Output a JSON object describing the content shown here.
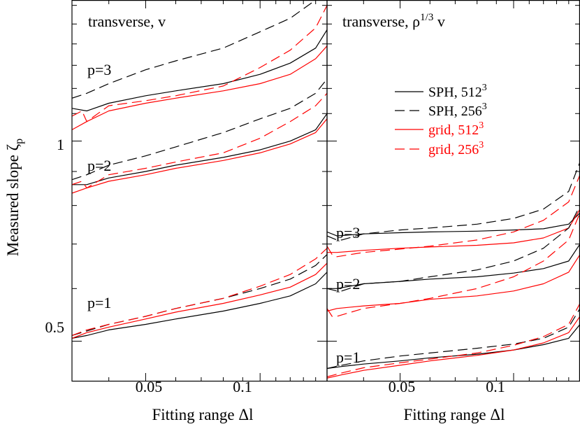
{
  "figure": {
    "ylabel": "Measured slope ζp",
    "ylabel_main": "Measured slope ζ",
    "ylabel_sub": "p",
    "xlabel": "Fitting range Δl",
    "xtick_labels": [
      "0.05",
      "0.1"
    ],
    "xticks": [
      0.05,
      0.1
    ],
    "ytick_labels": [
      "0.5",
      "1"
    ],
    "yticks": [
      0.5,
      1.0
    ]
  },
  "chart_data": [
    {
      "type": "line",
      "title": "transverse, v",
      "xlabel": "Fitting range Δl",
      "ylabel": "Measured slope ζp",
      "xscale": "log",
      "yscale": "log",
      "xlim": [
        0.032,
        0.15
      ],
      "ylim": [
        0.435,
        1.63
      ],
      "legend": [],
      "annotations": [
        {
          "text": "p=3",
          "x": 0.036,
          "y": 1.28
        },
        {
          "text": "p=2",
          "x": 0.036,
          "y": 0.905
        },
        {
          "text": "p=1",
          "x": 0.036,
          "y": 0.555
        }
      ],
      "series": [
        {
          "name": "SPH, 512³",
          "color": "#000000",
          "dash": "solid",
          "x": [
            0.032,
            0.035,
            0.04,
            0.05,
            0.06,
            0.08,
            0.1,
            0.12,
            0.14,
            0.15
          ],
          "y": [
            1.12,
            1.11,
            1.14,
            1.17,
            1.19,
            1.22,
            1.26,
            1.31,
            1.38,
            1.47
          ]
        },
        {
          "name": "SPH, 256³",
          "color": "#000000",
          "dash": "dashed",
          "x": [
            0.032,
            0.035,
            0.04,
            0.05,
            0.06,
            0.08,
            0.1,
            0.12,
            0.14,
            0.15
          ],
          "y": [
            1.16,
            1.18,
            1.22,
            1.28,
            1.32,
            1.38,
            1.46,
            1.53,
            1.63,
            1.7
          ]
        },
        {
          "name": "grid, 512³",
          "color": "#ff0000",
          "dash": "solid",
          "x": [
            0.032,
            0.035,
            0.04,
            0.05,
            0.06,
            0.08,
            0.1,
            0.12,
            0.14,
            0.15
          ],
          "y": [
            1.04,
            1.07,
            1.11,
            1.14,
            1.16,
            1.19,
            1.22,
            1.26,
            1.33,
            1.39
          ]
        },
        {
          "name": "grid, 256³",
          "color": "#ff0000",
          "dash": "dashed",
          "x": [
            0.032,
            0.034,
            0.035,
            0.04,
            0.05,
            0.06,
            0.08,
            0.1,
            0.12,
            0.14,
            0.15
          ],
          "y": [
            1.09,
            1.11,
            1.07,
            1.13,
            1.15,
            1.17,
            1.21,
            1.29,
            1.37,
            1.48,
            1.6
          ]
        },
        {
          "name": "SPH, 512³",
          "color": "#000000",
          "dash": "solid",
          "x": [
            0.032,
            0.035,
            0.04,
            0.05,
            0.06,
            0.08,
            0.1,
            0.12,
            0.14,
            0.15
          ],
          "y": [
            0.86,
            0.86,
            0.88,
            0.9,
            0.92,
            0.945,
            0.97,
            1.0,
            1.04,
            1.1
          ]
        },
        {
          "name": "SPH, 256³",
          "color": "#000000",
          "dash": "dashed",
          "x": [
            0.032,
            0.035,
            0.04,
            0.05,
            0.06,
            0.08,
            0.1,
            0.12,
            0.14,
            0.15
          ],
          "y": [
            0.875,
            0.89,
            0.92,
            0.95,
            0.98,
            1.03,
            1.08,
            1.12,
            1.18,
            1.24
          ]
        },
        {
          "name": "grid, 512³",
          "color": "#ff0000",
          "dash": "solid",
          "x": [
            0.032,
            0.035,
            0.04,
            0.05,
            0.06,
            0.08,
            0.1,
            0.12,
            0.14,
            0.15
          ],
          "y": [
            0.835,
            0.85,
            0.87,
            0.89,
            0.91,
            0.935,
            0.96,
            0.99,
            1.03,
            1.08
          ]
        },
        {
          "name": "grid, 256³",
          "color": "#ff0000",
          "dash": "dashed",
          "x": [
            0.032,
            0.034,
            0.035,
            0.04,
            0.05,
            0.06,
            0.08,
            0.1,
            0.12,
            0.14,
            0.15
          ],
          "y": [
            0.86,
            0.87,
            0.85,
            0.89,
            0.91,
            0.93,
            0.96,
            1.01,
            1.07,
            1.13,
            1.18
          ]
        },
        {
          "name": "SPH, 512³",
          "color": "#000000",
          "dash": "solid",
          "x": [
            0.032,
            0.035,
            0.04,
            0.05,
            0.06,
            0.08,
            0.1,
            0.12,
            0.14,
            0.15
          ],
          "y": [
            0.505,
            0.51,
            0.52,
            0.53,
            0.54,
            0.555,
            0.57,
            0.585,
            0.61,
            0.635
          ]
        },
        {
          "name": "SPH, 256³",
          "color": "#000000",
          "dash": "dashed",
          "x": [
            0.032,
            0.035,
            0.04,
            0.05,
            0.06,
            0.08,
            0.1,
            0.12,
            0.14,
            0.15
          ],
          "y": [
            0.51,
            0.518,
            0.53,
            0.545,
            0.56,
            0.58,
            0.6,
            0.62,
            0.65,
            0.675
          ]
        },
        {
          "name": "grid, 512³",
          "color": "#ff0000",
          "dash": "solid",
          "x": [
            0.032,
            0.035,
            0.04,
            0.05,
            0.06,
            0.08,
            0.1,
            0.12,
            0.14,
            0.15
          ],
          "y": [
            0.505,
            0.515,
            0.525,
            0.54,
            0.553,
            0.57,
            0.587,
            0.603,
            0.63,
            0.655
          ]
        },
        {
          "name": "grid, 256³",
          "color": "#ff0000",
          "dash": "dashed",
          "x": [
            0.032,
            0.035,
            0.04,
            0.05,
            0.06,
            0.08,
            0.1,
            0.12,
            0.14,
            0.15
          ],
          "y": [
            0.51,
            0.52,
            0.53,
            0.545,
            0.56,
            0.58,
            0.605,
            0.63,
            0.665,
            0.69
          ]
        }
      ]
    },
    {
      "type": "line",
      "title": "transverse, ρ1/3 v",
      "title_main": "transverse, ρ",
      "title_sup": "1/3",
      "title_end": " v",
      "xlabel": "Fitting range Δl",
      "xscale": "log",
      "yscale": "log",
      "xlim": [
        0.032,
        0.15
      ],
      "ylim": [
        0.435,
        1.63
      ],
      "legend": [
        {
          "label": "SPH, 512³",
          "label_main": "SPH, 512",
          "label_sup": "3",
          "color": "#000000",
          "dash": "solid"
        },
        {
          "label": "SPH, 256³",
          "label_main": "SPH, 256",
          "label_sup": "3",
          "color": "#000000",
          "dash": "dashed"
        },
        {
          "label": "grid, 512³",
          "label_main": "grid, 512",
          "label_sup": "3",
          "color": "#ff0000",
          "dash": "solid"
        },
        {
          "label": "grid, 256³",
          "label_main": "grid, 256",
          "label_sup": "3",
          "color": "#ff0000",
          "dash": "dashed"
        }
      ],
      "legend_position": "top-right",
      "annotations": [
        {
          "text": "p=3",
          "x": 0.034,
          "y": 0.735
        },
        {
          "text": "p=2",
          "x": 0.034,
          "y": 0.605
        },
        {
          "text": "p=1",
          "x": 0.034,
          "y": 0.457
        }
      ],
      "series": [
        {
          "name": "SPH, 512³",
          "color": "#000000",
          "dash": "solid",
          "x": [
            0.032,
            0.034,
            0.04,
            0.05,
            0.06,
            0.08,
            0.1,
            0.12,
            0.14,
            0.15
          ],
          "y": [
            0.73,
            0.72,
            0.725,
            0.728,
            0.73,
            0.732,
            0.735,
            0.738,
            0.75,
            0.78
          ]
        },
        {
          "name": "SPH, 256³",
          "color": "#000000",
          "dash": "dashed",
          "x": [
            0.032,
            0.034,
            0.035,
            0.04,
            0.05,
            0.06,
            0.08,
            0.1,
            0.12,
            0.14,
            0.15
          ],
          "y": [
            0.72,
            0.71,
            0.71,
            0.725,
            0.735,
            0.74,
            0.75,
            0.765,
            0.79,
            0.84,
            0.93
          ]
        },
        {
          "name": "grid, 512³",
          "color": "#ff0000",
          "dash": "solid",
          "x": [
            0.032,
            0.034,
            0.04,
            0.05,
            0.06,
            0.08,
            0.1,
            0.12,
            0.14,
            0.15
          ],
          "y": [
            0.68,
            0.68,
            0.685,
            0.69,
            0.693,
            0.697,
            0.703,
            0.715,
            0.74,
            0.79
          ]
        },
        {
          "name": "grid, 256³",
          "color": "#ff0000",
          "dash": "dashed",
          "x": [
            0.032,
            0.033,
            0.034,
            0.04,
            0.05,
            0.06,
            0.08,
            0.1,
            0.12,
            0.14,
            0.15
          ],
          "y": [
            0.695,
            0.675,
            0.67,
            0.68,
            0.688,
            0.695,
            0.71,
            0.73,
            0.76,
            0.81,
            0.89
          ]
        },
        {
          "name": "SPH, 512³",
          "color": "#000000",
          "dash": "solid",
          "x": [
            0.032,
            0.034,
            0.04,
            0.05,
            0.06,
            0.08,
            0.1,
            0.12,
            0.14,
            0.15
          ],
          "y": [
            0.6,
            0.6,
            0.61,
            0.615,
            0.62,
            0.625,
            0.633,
            0.643,
            0.66,
            0.7
          ]
        },
        {
          "name": "SPH, 256³",
          "color": "#000000",
          "dash": "dashed",
          "x": [
            0.032,
            0.034,
            0.035,
            0.04,
            0.05,
            0.06,
            0.08,
            0.1,
            0.12,
            0.14,
            0.15
          ],
          "y": [
            0.6,
            0.595,
            0.595,
            0.61,
            0.615,
            0.625,
            0.64,
            0.66,
            0.69,
            0.74,
            0.8
          ]
        },
        {
          "name": "grid, 512³",
          "color": "#ff0000",
          "dash": "solid",
          "x": [
            0.032,
            0.034,
            0.04,
            0.05,
            0.06,
            0.08,
            0.1,
            0.12,
            0.14,
            0.15
          ],
          "y": [
            0.555,
            0.56,
            0.565,
            0.57,
            0.578,
            0.585,
            0.595,
            0.61,
            0.635,
            0.675
          ]
        },
        {
          "name": "grid, 256³",
          "color": "#ff0000",
          "dash": "dashed",
          "x": [
            0.032,
            0.033,
            0.034,
            0.04,
            0.05,
            0.06,
            0.08,
            0.1,
            0.12,
            0.14,
            0.15
          ],
          "y": [
            0.56,
            0.545,
            0.545,
            0.56,
            0.57,
            0.58,
            0.6,
            0.625,
            0.66,
            0.71,
            0.78
          ]
        },
        {
          "name": "SPH, 512³",
          "color": "#000000",
          "dash": "solid",
          "x": [
            0.032,
            0.035,
            0.04,
            0.05,
            0.06,
            0.08,
            0.1,
            0.12,
            0.14,
            0.15
          ],
          "y": [
            0.455,
            0.458,
            0.462,
            0.467,
            0.472,
            0.478,
            0.485,
            0.494,
            0.505,
            0.53
          ]
        },
        {
          "name": "SPH, 256³",
          "color": "#000000",
          "dash": "dashed",
          "x": [
            0.032,
            0.035,
            0.04,
            0.05,
            0.06,
            0.08,
            0.1,
            0.12,
            0.14,
            0.15
          ],
          "y": [
            0.455,
            0.46,
            0.467,
            0.475,
            0.48,
            0.488,
            0.495,
            0.505,
            0.525,
            0.56
          ]
        },
        {
          "name": "grid, 512³",
          "color": "#ff0000",
          "dash": "solid",
          "x": [
            0.032,
            0.035,
            0.04,
            0.05,
            0.06,
            0.08,
            0.1,
            0.12,
            0.14,
            0.15
          ],
          "y": [
            0.44,
            0.445,
            0.452,
            0.46,
            0.467,
            0.476,
            0.485,
            0.497,
            0.515,
            0.545
          ]
        },
        {
          "name": "grid, 256³",
          "color": "#ff0000",
          "dash": "dashed",
          "x": [
            0.032,
            0.035,
            0.04,
            0.05,
            0.06,
            0.08,
            0.1,
            0.12,
            0.14,
            0.15
          ],
          "y": [
            0.442,
            0.448,
            0.456,
            0.464,
            0.47,
            0.48,
            0.493,
            0.508,
            0.53,
            0.57
          ]
        }
      ]
    }
  ]
}
